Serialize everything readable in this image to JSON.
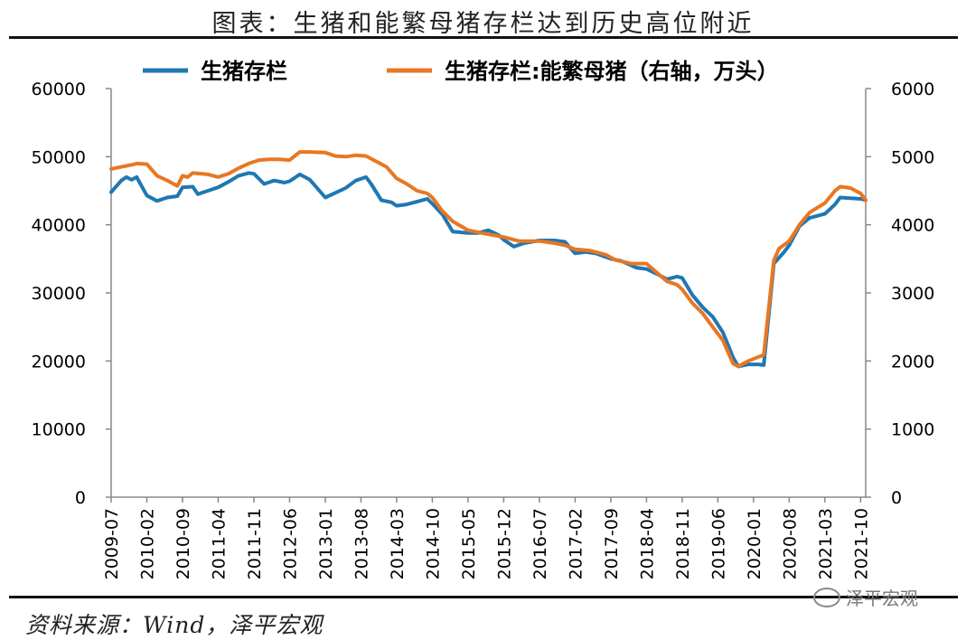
{
  "title": "图表：生猪和能繁母猪存栏达到历史高位附近",
  "source": "资料来源：Wind，泽平宏观",
  "watermark": "泽平宏观",
  "chart_data": {
    "type": "line",
    "title": "图表：生猪和能繁母猪存栏达到历史高位附近",
    "legend_position": "top",
    "grid": false,
    "x_ticks": [
      "2009-07",
      "2010-02",
      "2010-09",
      "2011-04",
      "2011-11",
      "2012-06",
      "2013-01",
      "2013-08",
      "2014-03",
      "2014-10",
      "2015-05",
      "2015-12",
      "2016-07",
      "2017-02",
      "2017-09",
      "2018-04",
      "2018-11",
      "2019-06",
      "2020-01",
      "2020-08",
      "2021-03",
      "2021-10"
    ],
    "x_range": [
      "2009-07",
      "2021-11"
    ],
    "y_left": {
      "ticks": [
        "0",
        "10000",
        "20000",
        "30000",
        "40000",
        "50000",
        "60000"
      ],
      "range": [
        0,
        60000
      ]
    },
    "y_right": {
      "ticks": [
        "0",
        "1000",
        "2000",
        "3000",
        "4000",
        "5000",
        "6000"
      ],
      "range": [
        0,
        6000
      ]
    },
    "series": [
      {
        "name": "生猪存栏",
        "axis": "left",
        "color": "#1f77b4",
        "points": [
          [
            "2009-07",
            44800
          ],
          [
            "2009-09",
            46500
          ],
          [
            "2009-10",
            47000
          ],
          [
            "2009-11",
            46600
          ],
          [
            "2009-12",
            47000
          ],
          [
            "2010-02",
            44300
          ],
          [
            "2010-04",
            43500
          ],
          [
            "2010-06",
            44000
          ],
          [
            "2010-08",
            44200
          ],
          [
            "2010-09",
            45500
          ],
          [
            "2010-11",
            45600
          ],
          [
            "2010-12",
            44500
          ],
          [
            "2011-02",
            45000
          ],
          [
            "2011-04",
            45500
          ],
          [
            "2011-06",
            46300
          ],
          [
            "2011-08",
            47200
          ],
          [
            "2011-10",
            47600
          ],
          [
            "2011-11",
            47500
          ],
          [
            "2012-01",
            46000
          ],
          [
            "2012-03",
            46500
          ],
          [
            "2012-05",
            46200
          ],
          [
            "2012-06",
            46400
          ],
          [
            "2012-08",
            47400
          ],
          [
            "2012-10",
            46600
          ],
          [
            "2013-01",
            44000
          ],
          [
            "2013-03",
            44700
          ],
          [
            "2013-05",
            45400
          ],
          [
            "2013-07",
            46500
          ],
          [
            "2013-09",
            47000
          ],
          [
            "2013-10",
            46000
          ],
          [
            "2013-12",
            43600
          ],
          [
            "2014-02",
            43300
          ],
          [
            "2014-03",
            42800
          ],
          [
            "2014-05",
            43000
          ],
          [
            "2014-07",
            43400
          ],
          [
            "2014-09",
            43800
          ],
          [
            "2014-10",
            43100
          ],
          [
            "2014-12",
            41500
          ],
          [
            "2015-02",
            39000
          ],
          [
            "2015-05",
            38800
          ],
          [
            "2015-07",
            38800
          ],
          [
            "2015-09",
            39200
          ],
          [
            "2015-11",
            38500
          ],
          [
            "2015-12",
            37800
          ],
          [
            "2016-02",
            36800
          ],
          [
            "2016-04",
            37300
          ],
          [
            "2016-07",
            37700
          ],
          [
            "2016-10",
            37700
          ],
          [
            "2016-12",
            37500
          ],
          [
            "2017-02",
            35800
          ],
          [
            "2017-04",
            36000
          ],
          [
            "2017-06",
            35800
          ],
          [
            "2017-09",
            35000
          ],
          [
            "2017-11",
            34700
          ],
          [
            "2018-02",
            33700
          ],
          [
            "2018-04",
            33500
          ],
          [
            "2018-06",
            32800
          ],
          [
            "2018-08",
            32000
          ],
          [
            "2018-10",
            32400
          ],
          [
            "2018-11",
            32200
          ],
          [
            "2019-01",
            29700
          ],
          [
            "2019-03",
            27900
          ],
          [
            "2019-05",
            26500
          ],
          [
            "2019-07",
            24200
          ],
          [
            "2019-09",
            20500
          ],
          [
            "2019-10",
            19200
          ],
          [
            "2019-12",
            19500
          ],
          [
            "2020-02",
            19500
          ],
          [
            "2020-03",
            19400
          ],
          [
            "2020-05",
            34300
          ],
          [
            "2020-07",
            36000
          ],
          [
            "2020-08",
            37000
          ],
          [
            "2020-10",
            39800
          ],
          [
            "2020-12",
            41000
          ],
          [
            "2021-03",
            41600
          ],
          [
            "2021-05",
            43000
          ],
          [
            "2021-06",
            44000
          ],
          [
            "2021-08",
            43900
          ],
          [
            "2021-10",
            43800
          ],
          [
            "2021-11",
            43600
          ]
        ]
      },
      {
        "name": "生猪存栏:能繁母猪（右轴，万头）",
        "axis": "right",
        "color": "#e87722",
        "points": [
          [
            "2009-07",
            4820
          ],
          [
            "2009-09",
            4850
          ],
          [
            "2009-11",
            4880
          ],
          [
            "2009-12",
            4900
          ],
          [
            "2010-02",
            4890
          ],
          [
            "2010-04",
            4720
          ],
          [
            "2010-06",
            4650
          ],
          [
            "2010-08",
            4570
          ],
          [
            "2010-09",
            4720
          ],
          [
            "2010-10",
            4700
          ],
          [
            "2010-11",
            4760
          ],
          [
            "2011-02",
            4740
          ],
          [
            "2011-04",
            4700
          ],
          [
            "2011-06",
            4750
          ],
          [
            "2011-08",
            4830
          ],
          [
            "2011-10",
            4900
          ],
          [
            "2011-12",
            4950
          ],
          [
            "2012-02",
            4960
          ],
          [
            "2012-04",
            4960
          ],
          [
            "2012-06",
            4950
          ],
          [
            "2012-08",
            5070
          ],
          [
            "2012-10",
            5070
          ],
          [
            "2013-01",
            5060
          ],
          [
            "2013-03",
            5010
          ],
          [
            "2013-05",
            5000
          ],
          [
            "2013-07",
            5020
          ],
          [
            "2013-09",
            5010
          ],
          [
            "2013-11",
            4930
          ],
          [
            "2014-01",
            4850
          ],
          [
            "2014-03",
            4680
          ],
          [
            "2014-05",
            4600
          ],
          [
            "2014-07",
            4500
          ],
          [
            "2014-09",
            4460
          ],
          [
            "2014-10",
            4400
          ],
          [
            "2014-12",
            4200
          ],
          [
            "2015-02",
            4050
          ],
          [
            "2015-05",
            3920
          ],
          [
            "2015-07",
            3890
          ],
          [
            "2015-09",
            3860
          ],
          [
            "2015-12",
            3820
          ],
          [
            "2016-03",
            3760
          ],
          [
            "2016-07",
            3760
          ],
          [
            "2016-10",
            3730
          ],
          [
            "2016-12",
            3700
          ],
          [
            "2017-02",
            3640
          ],
          [
            "2017-05",
            3620
          ],
          [
            "2017-08",
            3560
          ],
          [
            "2017-10",
            3480
          ],
          [
            "2018-01",
            3430
          ],
          [
            "2018-04",
            3430
          ],
          [
            "2018-06",
            3300
          ],
          [
            "2018-08",
            3170
          ],
          [
            "2018-10",
            3120
          ],
          [
            "2018-11",
            3050
          ],
          [
            "2019-01",
            2850
          ],
          [
            "2019-03",
            2700
          ],
          [
            "2019-05",
            2500
          ],
          [
            "2019-07",
            2300
          ],
          [
            "2019-09",
            1960
          ],
          [
            "2019-10",
            1920
          ],
          [
            "2019-12",
            2000
          ],
          [
            "2020-02",
            2060
          ],
          [
            "2020-03",
            2090
          ],
          [
            "2020-05",
            3480
          ],
          [
            "2020-06",
            3650
          ],
          [
            "2020-08",
            3760
          ],
          [
            "2020-10",
            4000
          ],
          [
            "2020-12",
            4180
          ],
          [
            "2021-03",
            4320
          ],
          [
            "2021-05",
            4500
          ],
          [
            "2021-06",
            4560
          ],
          [
            "2021-08",
            4540
          ],
          [
            "2021-10",
            4460
          ],
          [
            "2021-11",
            4360
          ]
        ]
      }
    ]
  }
}
